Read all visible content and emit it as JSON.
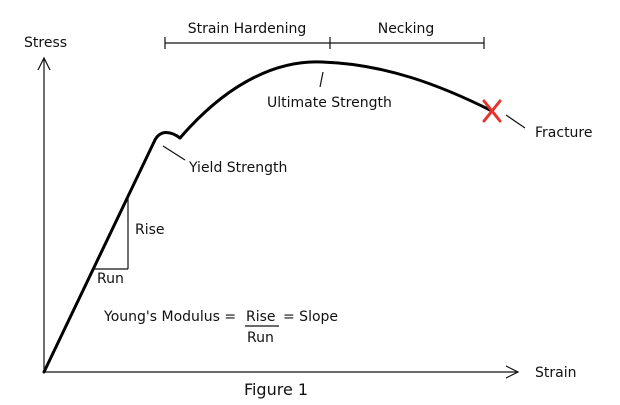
{
  "axes": {
    "y_label": "Stress",
    "x_label": "Strain"
  },
  "regions": {
    "strain_hardening": "Strain Hardening",
    "necking": "Necking"
  },
  "annotations": {
    "ultimate_strength": "Ultimate Strength",
    "yield_strength": "Yield Strength",
    "fracture": "Fracture",
    "rise": "Rise",
    "run": "Run"
  },
  "formula": {
    "lhs": "Young's Modulus =",
    "numerator": "Rise",
    "denominator": "Run",
    "rhs": "= Slope"
  },
  "caption": "Figure 1",
  "colors": {
    "curve": "#000000",
    "fracture_mark": "#e8322c"
  }
}
